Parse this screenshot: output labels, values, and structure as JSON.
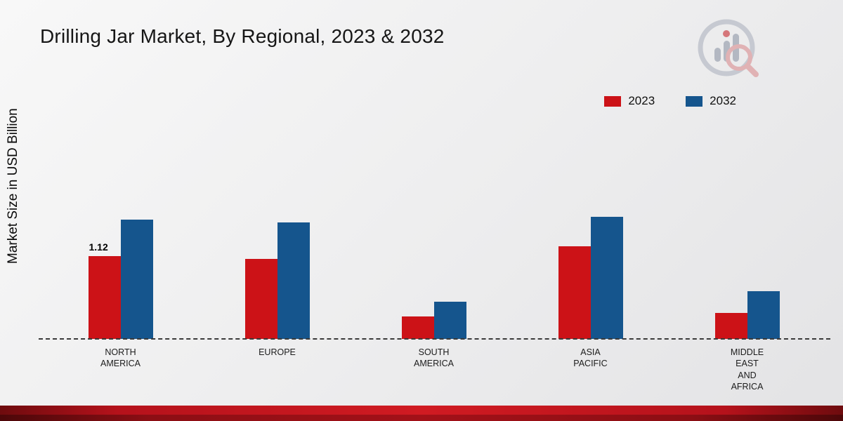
{
  "header": {
    "title": "Drilling Jar Market, By Regional, 2023 & 2032"
  },
  "axes": {
    "y_axis_label": "Market Size in USD Billion"
  },
  "colors": {
    "series_2023": "#cc1217",
    "series_2032": "#15558d",
    "background": "#ececee",
    "bottom_band": "#b5121b"
  },
  "chart_data": {
    "type": "bar",
    "title": "Drilling Jar Market, By Regional, 2023 & 2032",
    "xlabel": "",
    "ylabel": "Market Size in USD Billion",
    "categories": [
      "NORTH\nAMERICA",
      "EUROPE",
      "SOUTH\nAMERICA",
      "ASIA\nPACIFIC",
      "MIDDLE\nEAST\nAND\nAFRICA"
    ],
    "series": [
      {
        "name": "2023",
        "color": "#cc1217",
        "values": [
          1.12,
          1.08,
          0.3,
          1.25,
          0.35
        ],
        "labels": [
          "1.12",
          "",
          "",
          "",
          ""
        ]
      },
      {
        "name": "2032",
        "color": "#15558d",
        "values": [
          1.62,
          1.58,
          0.5,
          1.65,
          0.65
        ],
        "labels": [
          "",
          "",
          "",
          "",
          ""
        ]
      }
    ],
    "ylim": [
      0,
      3.45
    ],
    "grid": false,
    "legend_position": "top-right",
    "baseline_style": "dashed"
  },
  "logo": {
    "name": "market-research-brand-logo"
  }
}
